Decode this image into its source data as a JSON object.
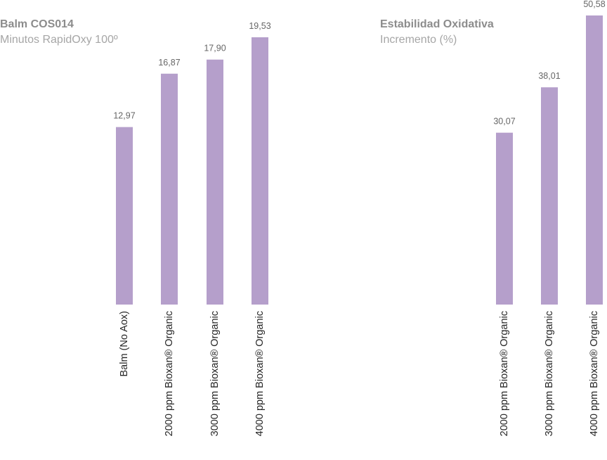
{
  "colors": {
    "bar": "#b59fcb",
    "title": "#8c8c8c",
    "subtitle": "#a6a6a6",
    "value_label": "#666666",
    "category_label": "#262626"
  },
  "chart_data": [
    {
      "type": "bar",
      "title": "Balm COS014",
      "subtitle": "Minutos RapidOxy 100º",
      "xlabel": "",
      "ylabel": "",
      "grid": false,
      "ylim": [
        0,
        19.53
      ],
      "categories": [
        "Balm (No Aox)",
        "2000 ppm Bioxan® Organic",
        "3000 ppm Bioxan® Organic",
        "4000 ppm Bioxan® Organic"
      ],
      "values": [
        12.97,
        16.87,
        17.9,
        19.53
      ],
      "value_labels": [
        "12,97",
        "16,87",
        "17,90",
        "19,53"
      ]
    },
    {
      "type": "bar",
      "title": "Estabilidad Oxidativa",
      "subtitle": "Incremento (%)",
      "xlabel": "",
      "ylabel": "",
      "grid": false,
      "ylim": [
        0,
        50.58
      ],
      "categories": [
        "2000 ppm Bioxan® Organic",
        "3000 ppm Bioxan® Organic",
        "4000 ppm Bioxan® Organic"
      ],
      "values": [
        30.07,
        38.01,
        50.58
      ],
      "value_labels": [
        "30,07",
        "38,01",
        "50,58"
      ]
    }
  ]
}
